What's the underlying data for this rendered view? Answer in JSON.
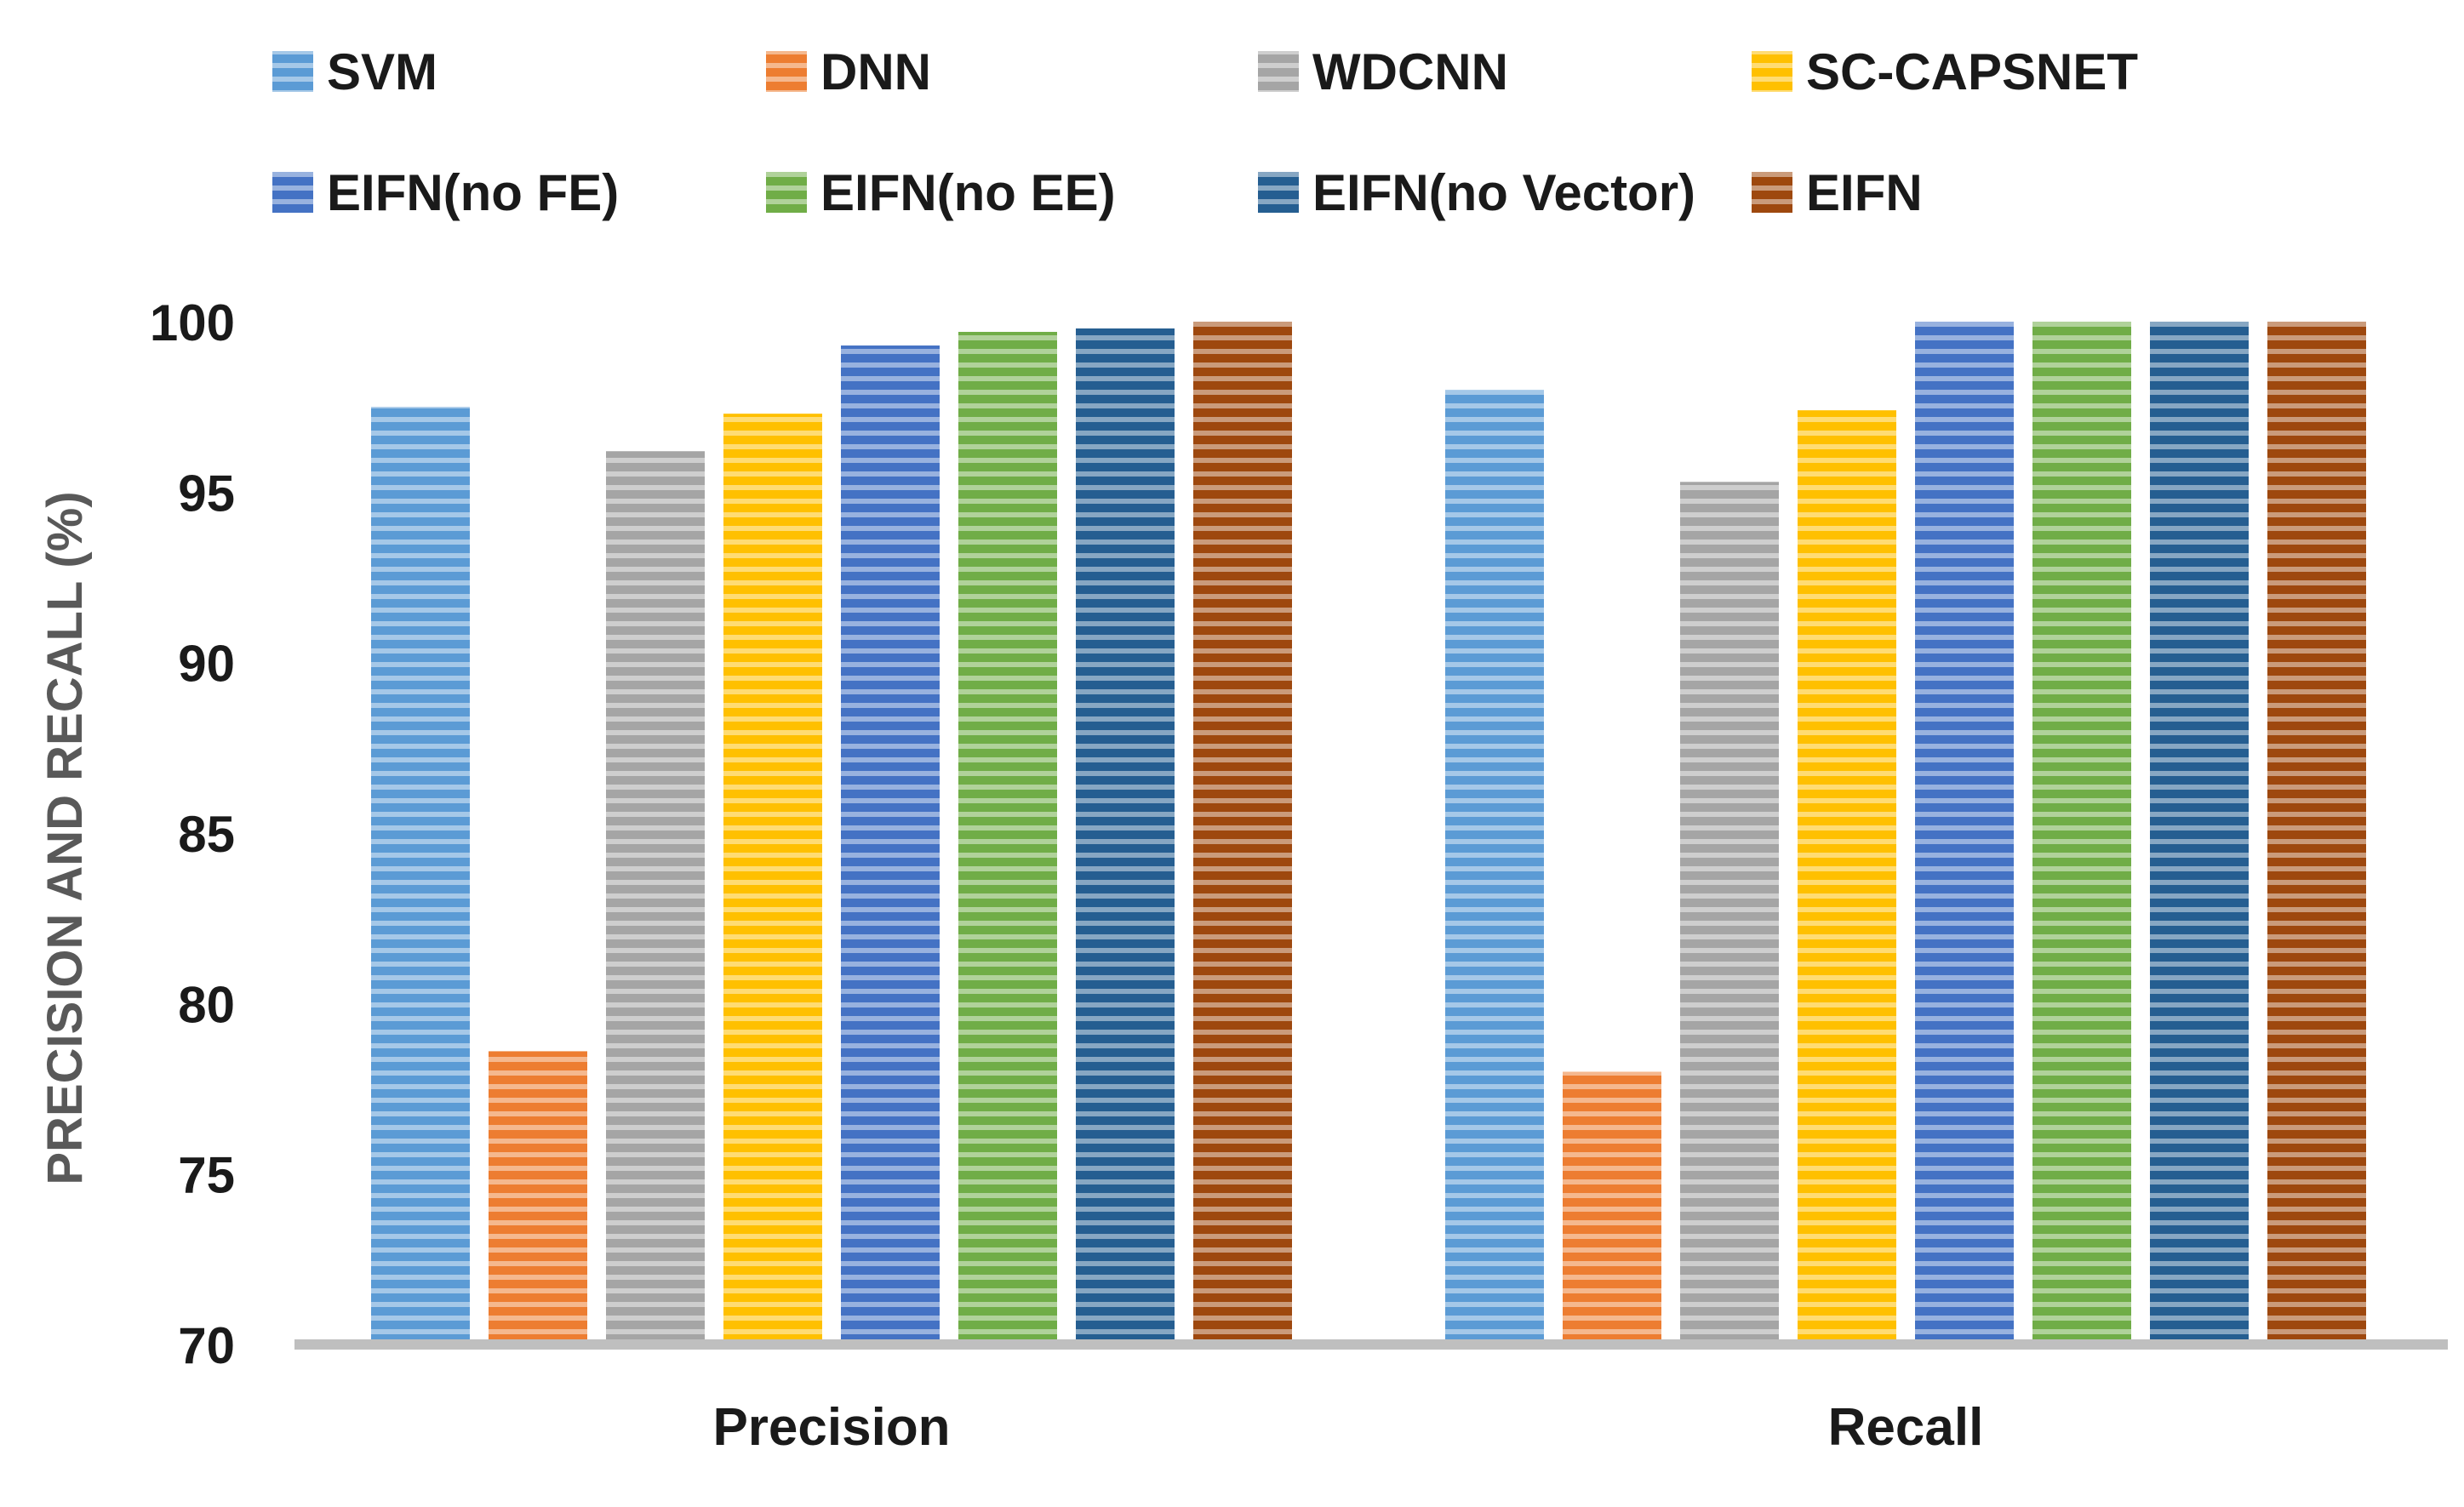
{
  "chart_data": {
    "type": "bar",
    "categories": [
      "Precision",
      "Recall"
    ],
    "series": [
      {
        "name": "SVM",
        "values": [
          97.5,
          98.0
        ],
        "color": "#5B9BD5"
      },
      {
        "name": "DNN",
        "values": [
          78.6,
          78.0
        ],
        "color": "#ED7D31"
      },
      {
        "name": "WDCNN",
        "values": [
          96.2,
          95.3
        ],
        "color": "#A5A5A5"
      },
      {
        "name": "SC-CAPSNET",
        "values": [
          97.3,
          97.4
        ],
        "color": "#FFC000"
      },
      {
        "name": "EIFN(no FE)",
        "values": [
          99.3,
          100
        ],
        "color": "#4472C4"
      },
      {
        "name": "EIFN(no EE)",
        "values": [
          99.7,
          100
        ],
        "color": "#70AD47"
      },
      {
        "name": "EIFN(no Vector)",
        "values": [
          99.8,
          100
        ],
        "color": "#255E91"
      },
      {
        "name": "EIFN",
        "values": [
          100,
          100
        ],
        "color": "#9E480E"
      }
    ],
    "title": "",
    "xlabel": "",
    "ylabel": "PRECISION AND RECALL (%)",
    "ylim": [
      70,
      100
    ],
    "yticks": [
      "70",
      "75",
      "80",
      "85",
      "90",
      "95",
      "100"
    ],
    "grid": false,
    "legend_position": "top",
    "pattern": "horizontal-stripes"
  }
}
